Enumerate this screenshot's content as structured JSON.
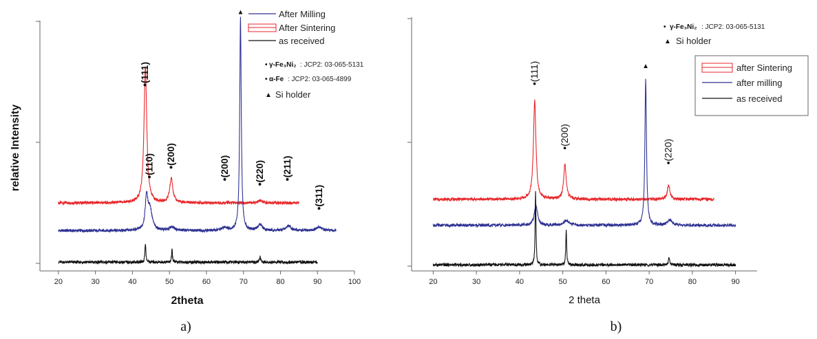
{
  "chart_data": [
    {
      "id": "a",
      "type": "line",
      "caption": "a)",
      "xlabel": "2theta",
      "ylabel": "relative Intensity",
      "xlim": [
        15,
        100
      ],
      "xticks": [
        20,
        30,
        40,
        50,
        60,
        70,
        80,
        90,
        100
      ],
      "legend_placement": "top",
      "grid": false,
      "legend": [
        "After Milling",
        "After Sintering",
        "as received"
      ],
      "phase_legend": [
        {
          "marker": "•",
          "formula": "γ-Fe₃Ni₂",
          "ref": ": JCP2: 03-065-5131"
        },
        {
          "marker": "•",
          "formula": "α-Fe",
          "ref": ": JCP2: 03-065-4899"
        },
        {
          "marker": "▲",
          "formula": "",
          "ref": "Si holder"
        }
      ],
      "peak_labels": [
        {
          "text": "(111)",
          "x": 43.5,
          "level": 0.73
        },
        {
          "text": "(110)",
          "x": 44.7,
          "level": 0.35
        },
        {
          "text": "(200)",
          "x": 50.5,
          "level": 0.39
        },
        {
          "text": "(200)",
          "x": 65.0,
          "level": 0.34
        },
        {
          "text": "(220)",
          "x": 74.5,
          "level": 0.32
        },
        {
          "text": "(211)",
          "x": 82.0,
          "level": 0.34
        },
        {
          "text": "(311)",
          "x": 90.5,
          "level": 0.22
        }
      ],
      "si_marker": {
        "x": 69.2,
        "level": 1.03
      },
      "series": [
        {
          "name": "After Sintering",
          "color": "#e8262a",
          "baseline": 0.25,
          "x_start": 20,
          "x_end": 85,
          "peaks": [
            [
              43.5,
              0.56,
              0.45
            ],
            [
              50.5,
              0.1,
              0.5
            ],
            [
              74.5,
              0.01,
              0.5
            ]
          ]
        },
        {
          "name": "After Milling",
          "color": "#2e3192",
          "baseline": 0.135,
          "x_start": 20,
          "x_end": 95,
          "peaks": [
            [
              43.8,
              0.13,
              0.4
            ],
            [
              44.7,
              0.09,
              0.7
            ],
            [
              50.7,
              0.015,
              0.8
            ],
            [
              65.0,
              0.012,
              0.9
            ],
            [
              69.2,
              0.88,
              0.25
            ],
            [
              74.5,
              0.025,
              0.7
            ],
            [
              82.2,
              0.02,
              0.8
            ],
            [
              90.5,
              0.015,
              0.9
            ]
          ]
        },
        {
          "name": "as received",
          "color": "#111111",
          "baseline": 0.005,
          "x_start": 20,
          "x_end": 90,
          "peaks": [
            [
              43.5,
              0.08,
              0.15
            ],
            [
              50.7,
              0.05,
              0.15
            ],
            [
              74.5,
              0.02,
              0.2
            ]
          ]
        }
      ]
    },
    {
      "id": "b",
      "type": "line",
      "caption": "b)",
      "xlabel": "2 theta",
      "ylabel": "",
      "xlim": [
        15,
        95
      ],
      "xticks": [
        20,
        30,
        40,
        50,
        60,
        70,
        80,
        90
      ],
      "legend_placement": "top-right",
      "grid": false,
      "legend": [
        "after Sintering",
        "after milling",
        "as received"
      ],
      "phase_legend": [
        {
          "marker": "•",
          "formula": "γ-Fe₃Ni₂",
          "ref": ": JCP2: 03-065-5131"
        },
        {
          "marker": "▲",
          "formula": "",
          "ref": "Si holder"
        }
      ],
      "peak_labels": [
        {
          "text": "(111)",
          "x": 43.5,
          "level": 0.73
        },
        {
          "text": "(200)",
          "x": 50.5,
          "level": 0.47
        },
        {
          "text": "(220)",
          "x": 74.5,
          "level": 0.41
        }
      ],
      "si_marker": {
        "x": 69.2,
        "level": 0.8
      },
      "series": [
        {
          "name": "after Sintering",
          "color": "#e8262a",
          "baseline": 0.27,
          "x_start": 20,
          "x_end": 85,
          "peaks": [
            [
              43.5,
              0.4,
              0.35
            ],
            [
              50.5,
              0.14,
              0.35
            ],
            [
              74.5,
              0.06,
              0.35
            ]
          ]
        },
        {
          "name": "after milling",
          "color": "#2e3192",
          "baseline": 0.165,
          "x_start": 20,
          "x_end": 90,
          "peaks": [
            [
              43.8,
              0.08,
              0.45
            ],
            [
              50.8,
              0.02,
              0.7
            ],
            [
              69.2,
              0.59,
              0.22
            ],
            [
              74.8,
              0.02,
              0.6
            ]
          ]
        },
        {
          "name": "as received",
          "color": "#111111",
          "baseline": 0.005,
          "x_start": 20,
          "x_end": 90,
          "peaks": [
            [
              43.7,
              0.3,
              0.12
            ],
            [
              50.8,
              0.14,
              0.12
            ],
            [
              74.6,
              0.03,
              0.15
            ]
          ]
        }
      ]
    }
  ]
}
